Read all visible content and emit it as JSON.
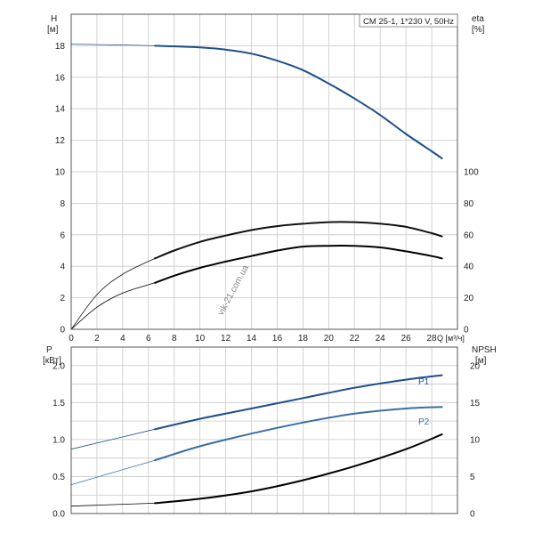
{
  "chart_data": [
    {
      "type": "line",
      "title": "CM 25-1, 1*230 V, 50Hz",
      "xlabel": "Q [м³/ч]",
      "ylabel": "H [м]",
      "ylabel_parts": [
        "H",
        "[м]"
      ],
      "ylabel2": "eta [%]",
      "ylabel2_parts": [
        "eta",
        "[%]"
      ],
      "xlim": [
        0,
        30
      ],
      "ylim": [
        0,
        20
      ],
      "y2lim": [
        0,
        200
      ],
      "grid": true,
      "x_ticks": [
        "0",
        "2",
        "4",
        "6",
        "8",
        "10",
        "12",
        "14",
        "16",
        "18",
        "20",
        "22",
        "24",
        "26",
        "28"
      ],
      "y_ticks": [
        "0",
        "2",
        "4",
        "6",
        "8",
        "10",
        "12",
        "14",
        "16",
        "18"
      ],
      "y2_ticks": [
        "0",
        "20",
        "40",
        "60",
        "80",
        "100"
      ],
      "series": [
        {
          "axis": "left",
          "color": "#1f4e8a",
          "x": [
            0,
            4,
            6.5,
            10,
            12,
            14,
            16,
            18,
            20,
            22,
            24,
            26,
            28,
            28.8
          ],
          "y": [
            18.1,
            18.05,
            18.0,
            17.9,
            17.75,
            17.5,
            17.05,
            16.45,
            15.6,
            14.65,
            13.6,
            12.4,
            11.3,
            10.85
          ],
          "dashed_until": 6.5
        },
        {
          "axis": "right",
          "color": "#111111",
          "x": [
            0,
            2,
            4,
            6.5,
            8,
            10,
            12,
            14,
            16,
            18,
            20,
            22,
            24,
            26,
            28,
            28.8
          ],
          "y": [
            0,
            22,
            35,
            45,
            50,
            55.5,
            59.5,
            63,
            65.5,
            67,
            68,
            68,
            67,
            65,
            61,
            59
          ],
          "dashed_until": 6.5
        },
        {
          "axis": "right",
          "color": "#000000",
          "x": [
            0,
            2,
            4,
            6.5,
            8,
            10,
            12,
            14,
            16,
            18,
            20,
            22,
            24,
            26,
            28,
            28.8
          ],
          "y": [
            0,
            14,
            23,
            29.5,
            34,
            39,
            43,
            46.5,
            50,
            52.5,
            53,
            53,
            52,
            49.5,
            46.5,
            45
          ],
          "dashed_until": 6.5
        }
      ]
    },
    {
      "type": "line",
      "xlabel": "",
      "ylabel": "P [кВт]",
      "ylabel_parts": [
        "P",
        "[кВт]"
      ],
      "ylabel2": "NPSH [м]",
      "ylabel2_parts": [
        "NPSH",
        "[м]"
      ],
      "xlim": [
        0,
        30
      ],
      "ylim": [
        0,
        2.25
      ],
      "y2lim": [
        0,
        22.5
      ],
      "grid": true,
      "y_ticks": [
        "0.0",
        "0.5",
        "1.0",
        "1.5",
        "2.0"
      ],
      "y2_ticks": [
        "0",
        "5",
        "10",
        "15",
        "20"
      ],
      "series": [
        {
          "name": "P1",
          "axis": "left",
          "color": "#1f4e8a",
          "x": [
            0,
            6.5,
            10,
            14,
            18,
            22,
            26,
            28.8
          ],
          "y": [
            0.87,
            1.14,
            1.28,
            1.42,
            1.56,
            1.7,
            1.81,
            1.87
          ],
          "dashed_until": 6.5
        },
        {
          "name": "P2",
          "axis": "left",
          "color": "#3a6ea5",
          "x": [
            0,
            6.5,
            10,
            14,
            18,
            22,
            26,
            28.8
          ],
          "y": [
            0.39,
            0.72,
            0.91,
            1.08,
            1.23,
            1.35,
            1.42,
            1.44
          ],
          "dashed_until": 6.5
        },
        {
          "axis": "right",
          "color": "#000000",
          "x": [
            0,
            6.5,
            10,
            14,
            18,
            22,
            26,
            28.8
          ],
          "y": [
            1.0,
            1.4,
            2.0,
            3.0,
            4.5,
            6.4,
            8.7,
            10.7
          ],
          "dashed_until": 6.5
        }
      ]
    }
  ],
  "watermark": "vik-21.com.ua"
}
